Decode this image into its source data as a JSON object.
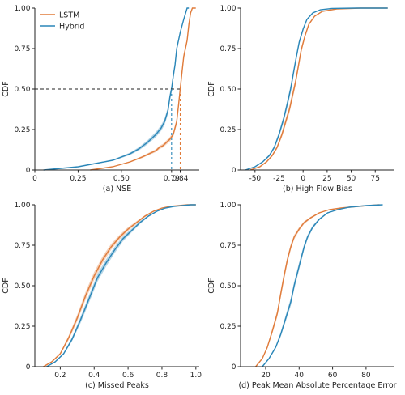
{
  "colors": {
    "lstm": "#e07b3a",
    "hybrid": "#2a86b8",
    "axis": "#222222",
    "ref": "#222222"
  },
  "legend": {
    "entries": [
      "LSTM",
      "Hybrid"
    ]
  },
  "chart_data": [
    {
      "type": "line",
      "id": "a",
      "xlabel": "(a) NSE",
      "ylabel": "CDF",
      "xlim": [
        0,
        0.95
      ],
      "ylim": [
        0,
        1.0
      ],
      "xticks": [
        0,
        0.25,
        0.5,
        0.79,
        0.84
      ],
      "xtick_labels": [
        "0",
        "0.25",
        "0.50",
        "0.79",
        "0.84"
      ],
      "yticks": [
        0,
        0.25,
        0.5,
        0.75,
        1.0
      ],
      "ytick_labels": [
        "0",
        "0.25",
        "0.50",
        "0.75",
        "1.00"
      ],
      "reference": {
        "y": 0.5,
        "medians": [
          {
            "series": "Hybrid",
            "x": 0.79
          },
          {
            "series": "LSTM",
            "x": 0.84
          }
        ]
      },
      "series": [
        {
          "name": "LSTM",
          "x": [
            0.32,
            0.45,
            0.55,
            0.62,
            0.66,
            0.7,
            0.72,
            0.74,
            0.76,
            0.78,
            0.8,
            0.82,
            0.83,
            0.84,
            0.85,
            0.86,
            0.88,
            0.89,
            0.9,
            0.91,
            0.93
          ],
          "y": [
            0.0,
            0.02,
            0.05,
            0.08,
            0.1,
            0.12,
            0.14,
            0.15,
            0.17,
            0.19,
            0.22,
            0.3,
            0.4,
            0.5,
            0.6,
            0.7,
            0.8,
            0.9,
            0.97,
            1.0,
            1.0
          ]
        },
        {
          "name": "Hybrid",
          "x": [
            0.05,
            0.15,
            0.25,
            0.35,
            0.45,
            0.55,
            0.6,
            0.65,
            0.7,
            0.73,
            0.75,
            0.77,
            0.78,
            0.79,
            0.8,
            0.81,
            0.82,
            0.84,
            0.86,
            0.88,
            0.89
          ],
          "y": [
            0.0,
            0.01,
            0.02,
            0.04,
            0.06,
            0.1,
            0.13,
            0.17,
            0.22,
            0.26,
            0.3,
            0.37,
            0.45,
            0.5,
            0.58,
            0.65,
            0.75,
            0.85,
            0.93,
            1.0,
            1.0
          ]
        }
      ]
    },
    {
      "type": "line",
      "id": "b",
      "xlabel": "(b) High Flow Bias",
      "ylabel": "CDF",
      "xlim": [
        -65,
        95
      ],
      "ylim": [
        0,
        1.0
      ],
      "xticks": [
        -50,
        -25,
        0,
        25,
        50,
        75
      ],
      "xtick_labels": [
        "-50",
        "-25",
        "0",
        "25",
        "50",
        "75"
      ],
      "yticks": [
        0,
        0.25,
        0.5,
        0.75,
        1.0
      ],
      "ytick_labels": [
        "0",
        "0.25",
        "0.50",
        "0.75",
        "1.00"
      ],
      "series": [
        {
          "name": "LSTM",
          "x": [
            -55,
            -45,
            -38,
            -32,
            -27,
            -22,
            -18,
            -14,
            -11,
            -8,
            -5,
            -2,
            2,
            6,
            12,
            20,
            35,
            60,
            88
          ],
          "y": [
            0.0,
            0.02,
            0.05,
            0.09,
            0.14,
            0.22,
            0.3,
            0.38,
            0.46,
            0.54,
            0.64,
            0.74,
            0.83,
            0.9,
            0.95,
            0.98,
            0.995,
            1.0,
            1.0
          ]
        },
        {
          "name": "Hybrid",
          "x": [
            -60,
            -50,
            -42,
            -35,
            -30,
            -25,
            -20,
            -16,
            -13,
            -10,
            -7,
            -4,
            0,
            4,
            10,
            18,
            30,
            55,
            88
          ],
          "y": [
            0.0,
            0.02,
            0.05,
            0.09,
            0.14,
            0.22,
            0.32,
            0.42,
            0.5,
            0.6,
            0.7,
            0.79,
            0.87,
            0.93,
            0.97,
            0.99,
            0.998,
            1.0,
            1.0
          ]
        }
      ]
    },
    {
      "type": "line",
      "id": "c",
      "xlabel": "(c) Missed Peaks",
      "ylabel": "CDF",
      "xlim": [
        0.05,
        1.02
      ],
      "ylim": [
        0,
        1.0
      ],
      "xticks": [
        0.2,
        0.4,
        0.6,
        0.8,
        1.0
      ],
      "xtick_labels": [
        "0.2",
        "0.4",
        "0.6",
        "0.8",
        "1.0"
      ],
      "yticks": [
        0,
        0.25,
        0.5,
        0.75,
        1.0
      ],
      "ytick_labels": [
        "0",
        "0.25",
        "0.50",
        "0.75",
        "1.00"
      ],
      "series": [
        {
          "name": "LSTM",
          "x": [
            0.1,
            0.15,
            0.2,
            0.25,
            0.3,
            0.35,
            0.4,
            0.45,
            0.5,
            0.55,
            0.6,
            0.65,
            0.7,
            0.75,
            0.8,
            0.85,
            0.9,
            0.95,
            1.0
          ],
          "y": [
            0.0,
            0.03,
            0.08,
            0.18,
            0.3,
            0.44,
            0.56,
            0.66,
            0.74,
            0.8,
            0.85,
            0.89,
            0.93,
            0.96,
            0.98,
            0.99,
            0.995,
            1.0,
            1.0
          ]
        },
        {
          "name": "Hybrid",
          "x": [
            0.12,
            0.17,
            0.22,
            0.27,
            0.32,
            0.37,
            0.42,
            0.47,
            0.52,
            0.57,
            0.62,
            0.67,
            0.72,
            0.77,
            0.82,
            0.87,
            0.92,
            0.97,
            1.0
          ],
          "y": [
            0.0,
            0.03,
            0.08,
            0.17,
            0.29,
            0.42,
            0.55,
            0.64,
            0.72,
            0.79,
            0.84,
            0.89,
            0.93,
            0.96,
            0.98,
            0.99,
            0.995,
            1.0,
            1.0
          ]
        }
      ]
    },
    {
      "type": "line",
      "id": "d",
      "xlabel": "(d) Peak Mean Absolute Percentage Error",
      "ylabel": "CDF",
      "xlim": [
        5,
        97
      ],
      "ylim": [
        0,
        1.0
      ],
      "xticks": [
        20,
        40,
        60,
        80
      ],
      "xtick_labels": [
        "20",
        "40",
        "60",
        "80"
      ],
      "yticks": [
        0,
        0.25,
        0.5,
        0.75,
        1.0
      ],
      "ytick_labels": [
        "0",
        "0.25",
        "0.50",
        "0.75",
        "1.00"
      ],
      "series": [
        {
          "name": "LSTM",
          "x": [
            14,
            18,
            21,
            24,
            27,
            29,
            31,
            33,
            35,
            37,
            40,
            43,
            47,
            52,
            58,
            65,
            75,
            88
          ],
          "y": [
            0.0,
            0.05,
            0.12,
            0.22,
            0.33,
            0.45,
            0.56,
            0.66,
            0.74,
            0.8,
            0.85,
            0.89,
            0.92,
            0.95,
            0.97,
            0.98,
            0.99,
            1.0
          ]
        },
        {
          "name": "Hybrid",
          "x": [
            18,
            22,
            26,
            29,
            32,
            35,
            37,
            39,
            41,
            43,
            45,
            48,
            52,
            57,
            63,
            70,
            80,
            90
          ],
          "y": [
            0.0,
            0.05,
            0.12,
            0.2,
            0.3,
            0.4,
            0.5,
            0.58,
            0.66,
            0.74,
            0.8,
            0.86,
            0.91,
            0.95,
            0.97,
            0.985,
            0.995,
            1.0
          ]
        }
      ]
    }
  ]
}
